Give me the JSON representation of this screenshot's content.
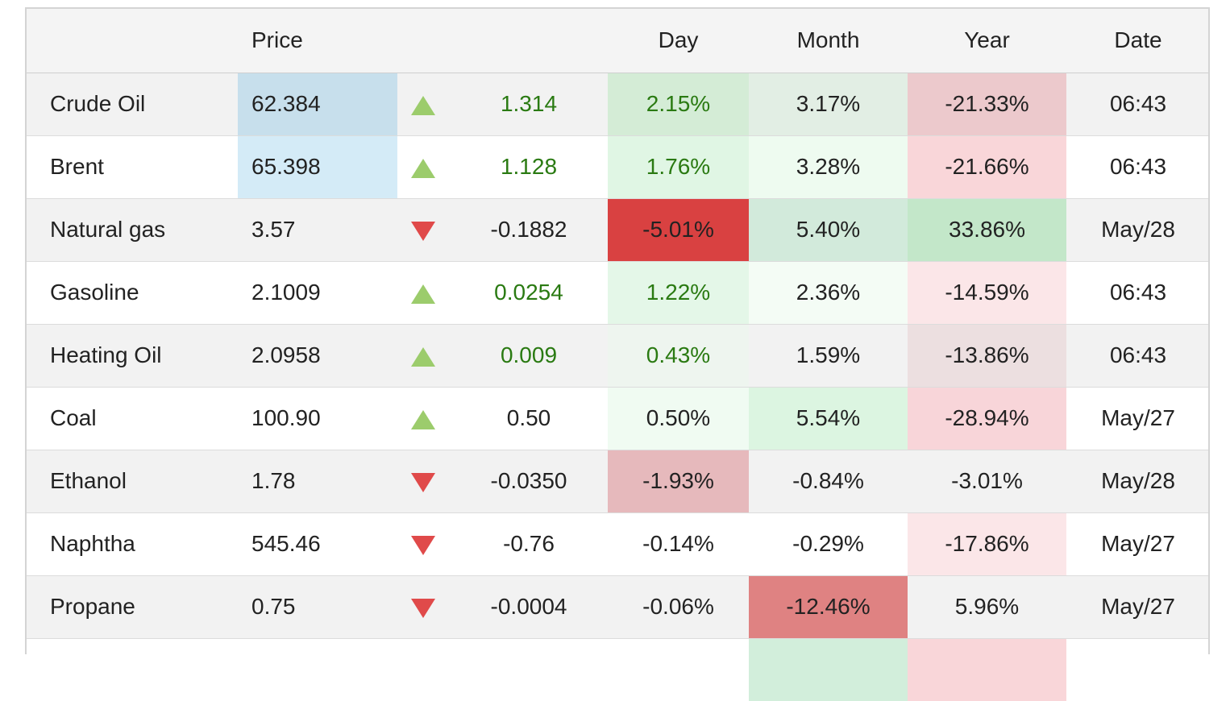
{
  "headers": {
    "name": "",
    "price": "Price",
    "change": "",
    "day": "Day",
    "month": "Month",
    "year": "Year",
    "date": "Date"
  },
  "rows": [
    {
      "name": "Crude Oil",
      "price": "62.384",
      "direction": "up",
      "change": "1.314",
      "day": "2.15%",
      "month": "3.17%",
      "year": "-21.33%",
      "date": "06:43",
      "price_bg": "#c7dfec",
      "day_bg": "#d4ecd6",
      "month_bg": "#e2eee4",
      "year_bg": "#ecc9cc",
      "change_color": "#2a7a12",
      "day_color": "#2a7a12"
    },
    {
      "name": "Brent",
      "price": "65.398",
      "direction": "up",
      "change": "1.128",
      "day": "1.76%",
      "month": "3.28%",
      "year": "-21.66%",
      "date": "06:43",
      "price_bg": "#d4ebf7",
      "day_bg": "#e0f6e4",
      "month_bg": "#eefbf0",
      "year_bg": "#f9d6d9",
      "change_color": "#2a7a12",
      "day_color": "#2a7a12"
    },
    {
      "name": "Natural gas",
      "price": "3.57",
      "direction": "down",
      "change": "-0.1882",
      "day": "-5.01%",
      "month": "5.40%",
      "year": "33.86%",
      "date": "May/28",
      "price_bg": "",
      "day_bg": "#d94141",
      "month_bg": "#d2eadb",
      "year_bg": "#c3e7c9",
      "change_color": "#222222",
      "day_color": "#222222"
    },
    {
      "name": "Gasoline",
      "price": "2.1009",
      "direction": "up",
      "change": "0.0254",
      "day": "1.22%",
      "month": "2.36%",
      "year": "-14.59%",
      "date": "06:43",
      "price_bg": "",
      "day_bg": "#e4f7e8",
      "month_bg": "#f4fcf5",
      "year_bg": "#fbe6e8",
      "change_color": "#2a7a12",
      "day_color": "#2a7a12"
    },
    {
      "name": "Heating Oil",
      "price": "2.0958",
      "direction": "up",
      "change": "0.009",
      "day": "0.43%",
      "month": "1.59%",
      "year": "-13.86%",
      "date": "06:43",
      "price_bg": "",
      "day_bg": "#eef5ef",
      "month_bg": "",
      "year_bg": "#ecdfe0",
      "change_color": "#2a7a12",
      "day_color": "#2a7a12"
    },
    {
      "name": "Coal",
      "price": "100.90",
      "direction": "up",
      "change": "0.50",
      "day": "0.50%",
      "month": "5.54%",
      "year": "-28.94%",
      "date": "May/27",
      "price_bg": "",
      "day_bg": "#f0fbf2",
      "month_bg": "#dcf5e1",
      "year_bg": "#f8d5d9",
      "change_color": "#222222",
      "day_color": "#222222"
    },
    {
      "name": "Ethanol",
      "price": "1.78",
      "direction": "down",
      "change": "-0.0350",
      "day": "-1.93%",
      "month": "-0.84%",
      "year": "-3.01%",
      "date": "May/28",
      "price_bg": "",
      "day_bg": "#e6b9bc",
      "month_bg": "",
      "year_bg": "",
      "change_color": "#222222",
      "day_color": "#222222"
    },
    {
      "name": "Naphtha",
      "price": "545.46",
      "direction": "down",
      "change": "-0.76",
      "day": "-0.14%",
      "month": "-0.29%",
      "year": "-17.86%",
      "date": "May/27",
      "price_bg": "",
      "day_bg": "",
      "month_bg": "",
      "year_bg": "#fbe6e8",
      "change_color": "#222222",
      "day_color": "#222222"
    },
    {
      "name": "Propane",
      "price": "0.75",
      "direction": "down",
      "change": "-0.0004",
      "day": "-0.06%",
      "month": "-12.46%",
      "year": "5.96%",
      "date": "May/27",
      "price_bg": "",
      "day_bg": "",
      "month_bg": "#df8282",
      "year_bg": "",
      "change_color": "#222222",
      "day_color": "#222222"
    },
    {
      "name": "",
      "price": "",
      "direction": "",
      "change": "",
      "day": "",
      "month": "",
      "year": "",
      "date": "",
      "price_bg": "",
      "day_bg": "",
      "month_bg": "#d2eedb",
      "year_bg": "#f9d6d9",
      "change_color": "#222222",
      "day_color": "#222222"
    }
  ]
}
